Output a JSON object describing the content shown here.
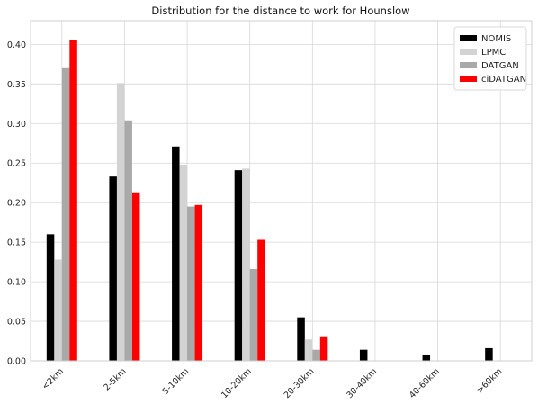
{
  "chart_data": {
    "type": "bar",
    "title": "Distribution for the distance to work for Hounslow",
    "xlabel": "",
    "ylabel": "",
    "categories": [
      "<2km",
      "2-5km",
      "5-10km",
      "10-20km",
      "20-30km",
      "30-40km",
      "40-60km",
      ">60km"
    ],
    "series": [
      {
        "name": "NOMIS",
        "color": "#000000",
        "values": [
          0.16,
          0.233,
          0.271,
          0.241,
          0.055,
          0.014,
          0.008,
          0.016
        ]
      },
      {
        "name": "LPMC",
        "color": "#d3d3d3",
        "values": [
          0.128,
          0.351,
          0.248,
          0.243,
          0.027,
          0.0,
          0.0,
          0.0
        ]
      },
      {
        "name": "DATGAN",
        "color": "#a9a9a9",
        "values": [
          0.37,
          0.304,
          0.195,
          0.116,
          0.014,
          0.0,
          0.0,
          0.0
        ]
      },
      {
        "name": "ciDATGAN",
        "color": "#ff0000",
        "values": [
          0.405,
          0.213,
          0.197,
          0.153,
          0.031,
          0.0,
          0.0,
          0.0
        ]
      }
    ],
    "ylim": [
      0,
      0.43
    ],
    "yticks": [
      "0.00",
      "0.05",
      "0.10",
      "0.15",
      "0.20",
      "0.25",
      "0.30",
      "0.35",
      "0.40"
    ],
    "grid": true,
    "legend_position": "top-right"
  }
}
